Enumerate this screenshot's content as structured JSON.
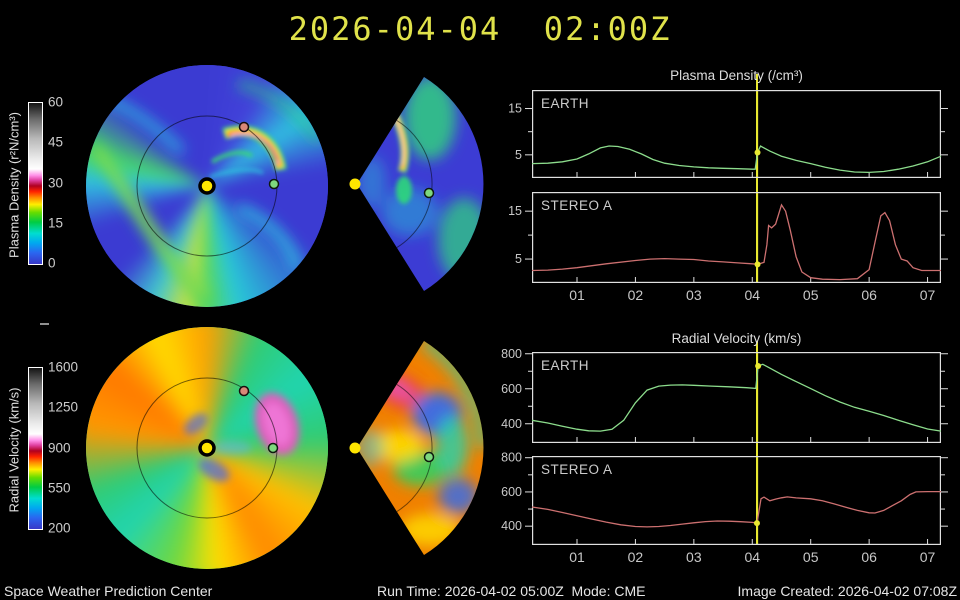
{
  "title": "2026-04-04  02:00Z",
  "status_bar": {
    "left": "Space Weather Prediction Center",
    "center": "Run Time: 2026-04-02 05:00Z  Mode: CME",
    "right": "Image Created: 2026-04-02 07:08Z"
  },
  "colorbars": {
    "density": {
      "label": "Plasma Density (r²N/cm³)",
      "ticks": [
        "60",
        "45",
        "30",
        "15",
        "0"
      ]
    },
    "velocity": {
      "label": "Radial Velocity (km/s)",
      "ticks": [
        "1600",
        "1250",
        "900",
        "550",
        "200"
      ]
    }
  },
  "colors": {
    "background": "#000000",
    "title_text": "#e0e24a",
    "axis": "#e0e0e0",
    "tick_text": "#c8c8c8",
    "panel_label_text": "#cccccc",
    "status_text": "#e6e6e6",
    "earth_line": "#8cdc8c",
    "stereo_a_line": "#cc7070",
    "event_line": "#e8e830",
    "sun_marker": "#ffe600",
    "earth_marker": "#7ed87e",
    "stereo_a_marker": "#d88878"
  },
  "chart_data": [
    {
      "type": "line",
      "title": "Plasma Density (/cm³)",
      "xlabel": "",
      "ylabel": "/cm³",
      "xlim": [
        0.23,
        7.23
      ],
      "x_tick_values": [
        1,
        2,
        3,
        4,
        5,
        6,
        7
      ],
      "x_ticks": [
        "01",
        "02",
        "03",
        "04",
        "05",
        "06",
        "07"
      ],
      "event_x": 4.083,
      "legend_position": "top-left-inside",
      "grid": false,
      "panels": [
        {
          "label": "EARTH",
          "color_key": "earth_line",
          "ylim": [
            0,
            19
          ],
          "yticks": [
            5,
            15
          ],
          "yminor": [
            10
          ],
          "show_xlabels": false,
          "points": [
            [
              0.23,
              3.1
            ],
            [
              0.5,
              3.2
            ],
            [
              0.75,
              3.5
            ],
            [
              1.0,
              4.1
            ],
            [
              1.2,
              5.2
            ],
            [
              1.4,
              6.5
            ],
            [
              1.55,
              6.9
            ],
            [
              1.7,
              6.8
            ],
            [
              1.9,
              6.2
            ],
            [
              2.1,
              5.2
            ],
            [
              2.3,
              4.0
            ],
            [
              2.5,
              3.2
            ],
            [
              2.75,
              2.7
            ],
            [
              3.0,
              2.4
            ],
            [
              3.25,
              2.2
            ],
            [
              3.5,
              2.1
            ],
            [
              3.75,
              2.0
            ],
            [
              4.0,
              1.9
            ],
            [
              4.05,
              1.9
            ],
            [
              4.09,
              5.5
            ],
            [
              4.14,
              6.9
            ],
            [
              4.3,
              5.8
            ],
            [
              4.5,
              4.7
            ],
            [
              4.75,
              3.8
            ],
            [
              5.0,
              3.1
            ],
            [
              5.25,
              2.3
            ],
            [
              5.5,
              1.7
            ],
            [
              5.75,
              1.3
            ],
            [
              6.0,
              1.2
            ],
            [
              6.25,
              1.4
            ],
            [
              6.5,
              1.9
            ],
            [
              6.75,
              2.6
            ],
            [
              7.0,
              3.5
            ],
            [
              7.23,
              4.7
            ]
          ]
        },
        {
          "label": "STEREO A",
          "color_key": "stereo_a_line",
          "ylim": [
            0,
            19
          ],
          "yticks": [
            5,
            15
          ],
          "yminor": [
            10
          ],
          "show_xlabels": true,
          "points": [
            [
              0.23,
              2.6
            ],
            [
              0.5,
              2.7
            ],
            [
              0.75,
              2.9
            ],
            [
              1.0,
              3.2
            ],
            [
              1.5,
              4.0
            ],
            [
              2.0,
              4.7
            ],
            [
              2.25,
              5.0
            ],
            [
              2.5,
              5.1
            ],
            [
              2.75,
              5.0
            ],
            [
              3.0,
              4.9
            ],
            [
              3.25,
              4.6
            ],
            [
              3.5,
              4.4
            ],
            [
              3.75,
              4.2
            ],
            [
              4.0,
              4.0
            ],
            [
              4.09,
              3.9
            ],
            [
              4.2,
              4.3
            ],
            [
              4.25,
              8.0
            ],
            [
              4.28,
              12.0
            ],
            [
              4.33,
              11.5
            ],
            [
              4.4,
              12.3
            ],
            [
              4.5,
              16.3
            ],
            [
              4.57,
              15.0
            ],
            [
              4.65,
              11.0
            ],
            [
              4.75,
              5.5
            ],
            [
              4.85,
              2.3
            ],
            [
              5.0,
              1.1
            ],
            [
              5.2,
              0.8
            ],
            [
              5.5,
              0.7
            ],
            [
              5.8,
              0.9
            ],
            [
              6.0,
              2.8
            ],
            [
              6.1,
              8.5
            ],
            [
              6.2,
              14.0
            ],
            [
              6.27,
              14.7
            ],
            [
              6.35,
              13.0
            ],
            [
              6.45,
              8.0
            ],
            [
              6.55,
              5.0
            ],
            [
              6.65,
              4.6
            ],
            [
              6.75,
              3.2
            ],
            [
              6.9,
              2.6
            ],
            [
              7.23,
              2.6
            ]
          ]
        }
      ]
    },
    {
      "type": "line",
      "title": "Radial Velocity (km/s)",
      "xlabel": "",
      "ylabel": "km/s",
      "xlim": [
        0.23,
        7.23
      ],
      "x_tick_values": [
        1,
        2,
        3,
        4,
        5,
        6,
        7
      ],
      "x_ticks": [
        "01",
        "02",
        "03",
        "04",
        "05",
        "06",
        "07"
      ],
      "event_x": 4.083,
      "legend_position": "top-left-inside",
      "grid": false,
      "panels": [
        {
          "label": "EARTH",
          "color_key": "earth_line",
          "ylim": [
            290,
            810
          ],
          "yticks": [
            400,
            600,
            800
          ],
          "yminor": [
            500,
            700
          ],
          "show_xlabels": false,
          "points": [
            [
              0.23,
              420
            ],
            [
              0.5,
              404
            ],
            [
              0.75,
              386
            ],
            [
              1.0,
              369
            ],
            [
              1.2,
              360
            ],
            [
              1.4,
              358
            ],
            [
              1.6,
              368
            ],
            [
              1.8,
              420
            ],
            [
              2.0,
              520
            ],
            [
              2.2,
              592
            ],
            [
              2.4,
              615
            ],
            [
              2.6,
              621
            ],
            [
              2.8,
              622
            ],
            [
              3.0,
              620
            ],
            [
              3.3,
              615
            ],
            [
              3.6,
              611
            ],
            [
              3.9,
              606
            ],
            [
              4.06,
              602
            ],
            [
              4.1,
              730
            ],
            [
              4.18,
              740
            ],
            [
              4.3,
              718
            ],
            [
              4.5,
              682
            ],
            [
              4.75,
              641
            ],
            [
              5.0,
              601
            ],
            [
              5.25,
              560
            ],
            [
              5.5,
              524
            ],
            [
              5.75,
              494
            ],
            [
              6.0,
              471
            ],
            [
              6.25,
              447
            ],
            [
              6.5,
              420
            ],
            [
              6.75,
              394
            ],
            [
              7.0,
              370
            ],
            [
              7.23,
              358
            ]
          ]
        },
        {
          "label": "STEREO A",
          "color_key": "stereo_a_line",
          "ylim": [
            290,
            810
          ],
          "yticks": [
            400,
            600,
            800
          ],
          "yminor": [
            500,
            700
          ],
          "show_xlabels": true,
          "points": [
            [
              0.23,
              512
            ],
            [
              0.5,
              498
            ],
            [
              0.75,
              480
            ],
            [
              1.0,
              461
            ],
            [
              1.25,
              442
            ],
            [
              1.5,
              424
            ],
            [
              1.75,
              408
            ],
            [
              2.0,
              398
            ],
            [
              2.2,
              396
            ],
            [
              2.4,
              398
            ],
            [
              2.6,
              404
            ],
            [
              2.8,
              412
            ],
            [
              3.0,
              420
            ],
            [
              3.2,
              427
            ],
            [
              3.4,
              430
            ],
            [
              3.6,
              429
            ],
            [
              3.8,
              426
            ],
            [
              4.0,
              422
            ],
            [
              4.08,
              418
            ],
            [
              4.15,
              560
            ],
            [
              4.2,
              570
            ],
            [
              4.3,
              548
            ],
            [
              4.4,
              558
            ],
            [
              4.5,
              566
            ],
            [
              4.6,
              571
            ],
            [
              4.75,
              565
            ],
            [
              5.0,
              560
            ],
            [
              5.2,
              549
            ],
            [
              5.4,
              530
            ],
            [
              5.6,
              510
            ],
            [
              5.8,
              492
            ],
            [
              6.0,
              478
            ],
            [
              6.1,
              477
            ],
            [
              6.25,
              492
            ],
            [
              6.4,
              520
            ],
            [
              6.55,
              548
            ],
            [
              6.7,
              585
            ],
            [
              6.8,
              600
            ],
            [
              7.0,
              602
            ],
            [
              7.23,
              602
            ]
          ]
        }
      ]
    }
  ]
}
